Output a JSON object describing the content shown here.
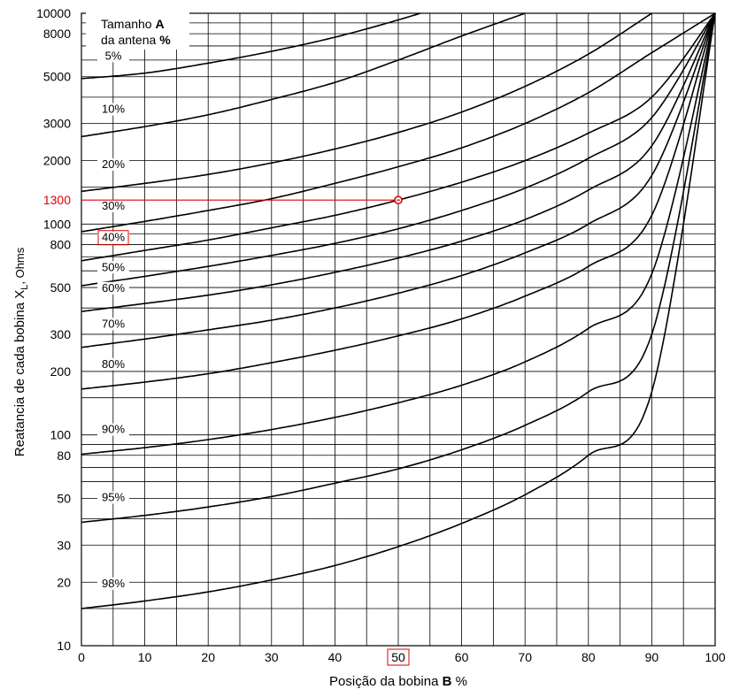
{
  "chart_data": {
    "type": "line",
    "title": "",
    "xlabel": "Posição da bobina",
    "xlabel_bold": "B",
    "xlabel_unit": "%",
    "ylabel": "Reatancia de cada bobina",
    "ylabel_symbol": "X",
    "ylabel_subscript": "L",
    "ylabel_unit": ", Ohms",
    "legend_title_line1": "Tamanho",
    "legend_title_line1_bold": "A",
    "legend_title_line2": "da antena",
    "legend_title_line2_bold": "%",
    "y_scale": "log",
    "xlim": [
      0,
      100
    ],
    "ylim": [
      10,
      10000
    ],
    "grid": true,
    "x_ticks": [
      0,
      10,
      20,
      30,
      40,
      50,
      60,
      70,
      80,
      90,
      100
    ],
    "y_ticks": [
      10,
      20,
      30,
      50,
      80,
      100,
      200,
      300,
      500,
      800,
      1000,
      1300,
      2000,
      3000,
      5000,
      8000,
      10000
    ],
    "highlight_x": 50,
    "highlight_y": 1300,
    "highlight_curve": "40%",
    "highlight_color": "#e00000",
    "series": [
      {
        "name": "5%",
        "values": [
          4900,
          5200,
          5800,
          6600,
          7700,
          9300,
          11500
        ]
      },
      {
        "name": "10%",
        "values": [
          2600,
          2900,
          3300,
          3900,
          4700,
          6000,
          7800,
          10000
        ]
      },
      {
        "name": "20%",
        "values": [
          1430,
          1560,
          1720,
          1950,
          2270,
          2720,
          3400,
          4500,
          6400,
          10000
        ]
      },
      {
        "name": "30%",
        "values": [
          920,
          1030,
          1160,
          1320,
          1560,
          1870,
          2300,
          3000,
          4200,
          6500,
          10000
        ]
      },
      {
        "name": "40%",
        "values": [
          670,
          750,
          840,
          960,
          1100,
          1300,
          1580,
          2000,
          2700,
          4000,
          10000
        ]
      },
      {
        "name": "50%",
        "values": [
          510,
          565,
          630,
          710,
          810,
          950,
          1160,
          1480,
          2050,
          3200,
          10000
        ]
      },
      {
        "name": "60%",
        "values": [
          385,
          420,
          460,
          515,
          590,
          690,
          830,
          1050,
          1450,
          2350,
          10000
        ]
      },
      {
        "name": "70%",
        "values": [
          260,
          285,
          315,
          350,
          400,
          470,
          570,
          730,
          1000,
          1700,
          10000
        ]
      },
      {
        "name": "80%",
        "values": [
          165,
          178,
          195,
          220,
          252,
          295,
          355,
          455,
          630,
          1100,
          10000
        ]
      },
      {
        "name": "90%",
        "values": [
          81,
          87,
          95,
          106,
          121,
          142,
          172,
          222,
          320,
          580,
          10000
        ]
      },
      {
        "name": "95%",
        "values": [
          38.5,
          41.5,
          45.5,
          51,
          59,
          69,
          85,
          111,
          160,
          300,
          10000
        ]
      },
      {
        "name": "98%",
        "values": [
          15,
          16.3,
          18,
          20.5,
          24,
          29.5,
          38,
          52,
          80,
          160,
          10000
        ]
      }
    ]
  }
}
